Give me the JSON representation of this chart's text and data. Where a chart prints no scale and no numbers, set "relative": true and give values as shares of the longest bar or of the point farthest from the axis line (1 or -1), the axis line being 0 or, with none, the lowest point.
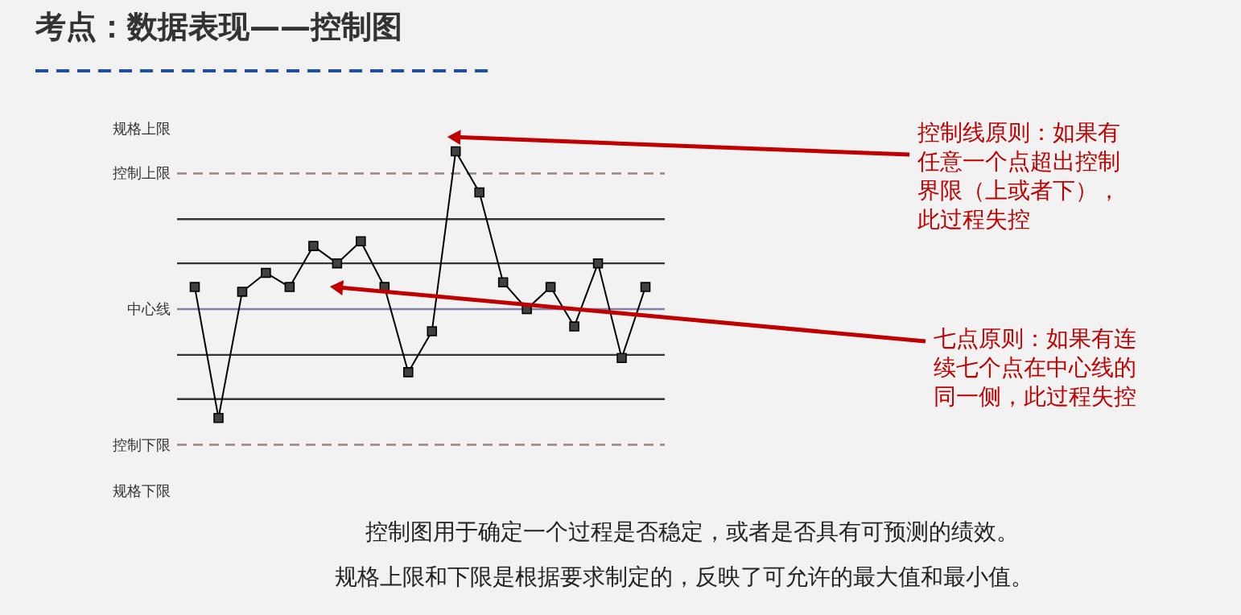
{
  "chart_data": {
    "type": "line",
    "title": "考点：数据表现——控制图",
    "relative": true,
    "categories": [
      null,
      null,
      null,
      null,
      null,
      null,
      null,
      null,
      null,
      null,
      null,
      null,
      null,
      null,
      null,
      null,
      null,
      null,
      null,
      null
    ],
    "series": [
      {
        "color": "#000000",
        "values": [
          0.14,
          -0.69,
          0.11,
          0.23,
          0.14,
          0.4,
          0.29,
          0.43,
          0.14,
          -0.4,
          -0.14,
          1,
          0.74,
          0.17,
          0,
          0.14,
          -0.11,
          0.29,
          -0.31,
          0.14
        ]
      }
    ],
    "marker": "square",
    "line_style": "solid",
    "grid": false,
    "ref_lines": [
      {
        "axis": "y",
        "value": 0.86,
        "label": "控制上限",
        "color": "#a08080",
        "line_style": "dashed"
      },
      {
        "axis": "y",
        "value": 0.57,
        "color": "#333333",
        "line_style": "solid"
      },
      {
        "axis": "y",
        "value": 0.29,
        "color": "#333333",
        "line_style": "solid"
      },
      {
        "axis": "y",
        "value": 0,
        "label": "中心线",
        "color": "#8080a8",
        "line_style": "solid"
      },
      {
        "axis": "y",
        "value": -0.29,
        "color": "#333333",
        "line_style": "solid"
      },
      {
        "axis": "y",
        "value": -0.57,
        "color": "#333333",
        "line_style": "solid"
      },
      {
        "axis": "y",
        "value": -0.86,
        "label": "控制下限",
        "color": "#a08080",
        "line_style": "dashed"
      }
    ],
    "annotations": [
      "规格上限",
      "规格下限",
      "控制线原则：如果有任意一个点超出控制界限（上或者下），此过程失控",
      "七点原则：如果有连续七个点在中心线的同一侧，此过程失控",
      "控制图用于确定一个过程是否稳定，或者是否具有可预测的绩效。",
      "规格上限和下限是根据要求制定的，反映了可允许的最大值和最小值。"
    ]
  }
}
